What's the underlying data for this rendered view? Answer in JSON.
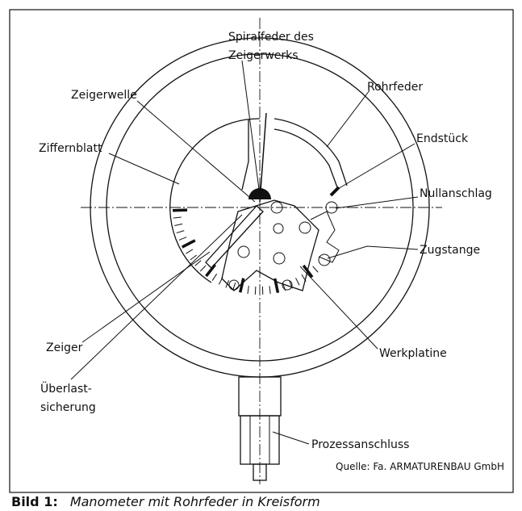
{
  "labels": [
    [
      "Spiralfeder des",
      "Zeigerwerks"
    ],
    [
      "Rohrfeder"
    ],
    [
      "Zeigerwelle"
    ],
    [
      "Endstück"
    ],
    [
      "Ziffernblatt"
    ],
    [
      "Nullanschlag"
    ],
    [
      "Zugstange"
    ],
    [
      "Zeiger"
    ],
    [
      "Werkplatine"
    ],
    [
      "Überlast-",
      "sicherung"
    ],
    [
      "Prozessanschluss"
    ]
  ],
  "source": "Quelle: Fa. ARMATURENBAU GmbH",
  "caption": {
    "label": "Bild 1:",
    "text": "Manometer mit Rohrfeder in Kreisform"
  }
}
